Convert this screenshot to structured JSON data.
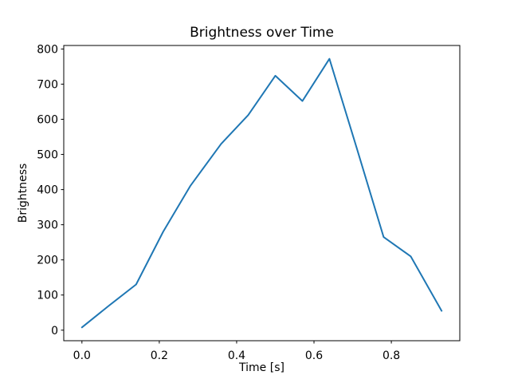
{
  "window": {
    "title": "Brightness over Time"
  },
  "chart_data": {
    "type": "line",
    "title": "Brightness over Time",
    "xlabel": "Time [s]",
    "ylabel": "Brightness",
    "x": [
      0.0,
      0.07,
      0.14,
      0.21,
      0.28,
      0.36,
      0.43,
      0.5,
      0.57,
      0.64,
      0.71,
      0.78,
      0.85,
      0.93
    ],
    "y": [
      8,
      70,
      130,
      280,
      410,
      530,
      612,
      724,
      652,
      772,
      520,
      265,
      210,
      55
    ],
    "series_name": "Brightness",
    "line_color": "#1f77b4",
    "line_width": 2,
    "xlim": [
      -0.047,
      0.977
    ],
    "ylim": [
      -30,
      810
    ],
    "xticks": [
      0.0,
      0.2,
      0.4,
      0.6,
      0.8
    ],
    "xtick_labels": [
      "0.0",
      "0.2",
      "0.4",
      "0.6",
      "0.8"
    ],
    "yticks": [
      0,
      100,
      200,
      300,
      400,
      500,
      600,
      700,
      800
    ],
    "ytick_labels": [
      "0",
      "100",
      "200",
      "300",
      "400",
      "500",
      "600",
      "700",
      "800"
    ],
    "grid": false,
    "legend": "none",
    "frame_color": "#000000",
    "background_color": "#ffffff"
  }
}
